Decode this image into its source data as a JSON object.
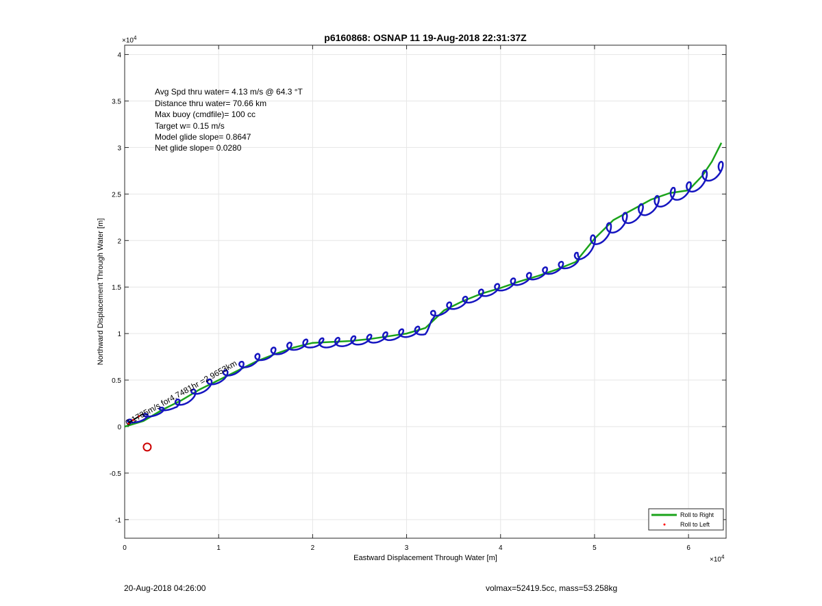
{
  "chart_data": {
    "type": "line",
    "title": "p6160868: OSNAP 11 19-Aug-2018 22:31:37Z",
    "xlabel": "Eastward Displacement Through Water [m]",
    "ylabel": "Northward Displacement Through Water [m]",
    "x_multiplier": "×10",
    "x_multiplier_exp": "4",
    "y_multiplier": "×10",
    "y_multiplier_exp": "4",
    "xlim": [
      0,
      64000
    ],
    "ylim": [
      -12000,
      41000
    ],
    "x_ticks": [
      0,
      10000,
      20000,
      30000,
      40000,
      50000,
      60000
    ],
    "x_tick_labels": [
      "0",
      "1",
      "2",
      "3",
      "4",
      "5",
      "6"
    ],
    "y_ticks": [
      -10000,
      -5000,
      0,
      5000,
      10000,
      15000,
      20000,
      25000,
      30000,
      35000,
      40000
    ],
    "y_tick_labels": [
      "-1",
      "-0.5",
      "0",
      "0.5",
      "1",
      "1.5",
      "2",
      "2.5",
      "3",
      "3.5",
      "4"
    ],
    "grid": true,
    "legend_position": "bottom-right",
    "annotations": [
      "Avg Spd thru water=  4.13 m/s @  64.3 °T",
      "Distance thru water= 70.66 km",
      "Max buoy (cmdfile)= 100 cc",
      "Target w= 0.15 m/s",
      "Model glide slope= 0.8647",
      "Net glide slope= 0.0280"
    ],
    "rotated_label": "0.1735m/s for4.7481hr =2.9653km",
    "series": [
      {
        "name": "Roll to Right",
        "color": "#1aa31a",
        "style": "line",
        "points": [
          [
            0,
            0
          ],
          [
            2000,
            600
          ],
          [
            4000,
            1800
          ],
          [
            6000,
            2800
          ],
          [
            8000,
            4000
          ],
          [
            10000,
            5000
          ],
          [
            12000,
            6000
          ],
          [
            14000,
            7000
          ],
          [
            16000,
            7800
          ],
          [
            18000,
            8500
          ],
          [
            20000,
            9000
          ],
          [
            22000,
            9100
          ],
          [
            24000,
            9200
          ],
          [
            26000,
            9400
          ],
          [
            28000,
            9700
          ],
          [
            30000,
            10000
          ],
          [
            32000,
            10600
          ],
          [
            34000,
            12500
          ],
          [
            36000,
            13500
          ],
          [
            38000,
            14300
          ],
          [
            40000,
            14900
          ],
          [
            42000,
            15600
          ],
          [
            44000,
            16200
          ],
          [
            46000,
            16900
          ],
          [
            48000,
            17700
          ],
          [
            50000,
            20200
          ],
          [
            52000,
            22200
          ],
          [
            54000,
            23300
          ],
          [
            56000,
            24400
          ],
          [
            58000,
            25100
          ],
          [
            60000,
            25400
          ],
          [
            61500,
            27000
          ],
          [
            62500,
            28500
          ],
          [
            63500,
            30500
          ]
        ]
      },
      {
        "name": "Roll to Left",
        "color": "#ff0000",
        "style": "dots",
        "points": [
          [
            400,
            300
          ],
          [
            900,
            700
          ],
          [
            1500,
            1100
          ]
        ]
      },
      {
        "name": "",
        "color": "#1515c0",
        "style": "line",
        "base": [
          [
            0,
            300
          ],
          [
            2000,
            1000
          ],
          [
            4000,
            1800
          ],
          [
            6000,
            2600
          ],
          [
            8000,
            4000
          ],
          [
            10000,
            5200
          ],
          [
            12000,
            6300
          ],
          [
            14000,
            7300
          ],
          [
            16000,
            8100
          ],
          [
            18000,
            8700
          ],
          [
            20000,
            9000
          ],
          [
            22000,
            9000
          ],
          [
            24000,
            9200
          ],
          [
            26000,
            9400
          ],
          [
            28000,
            9700
          ],
          [
            30000,
            10100
          ],
          [
            32000,
            10400
          ],
          [
            32200,
            11600
          ],
          [
            34000,
            12700
          ],
          [
            36000,
            13400
          ],
          [
            38000,
            14300
          ],
          [
            40000,
            15000
          ],
          [
            42000,
            15700
          ],
          [
            44000,
            16400
          ],
          [
            46000,
            17100
          ],
          [
            48000,
            17800
          ],
          [
            49000,
            19000
          ],
          [
            50000,
            20000
          ],
          [
            52000,
            21500
          ],
          [
            54000,
            22700
          ],
          [
            56000,
            23700
          ],
          [
            58000,
            24800
          ],
          [
            60000,
            25500
          ],
          [
            62000,
            27000
          ],
          [
            64000,
            28000
          ]
        ],
        "wiggle_amplitude_y": 500,
        "wiggle_period_x": 1700
      }
    ],
    "marker": {
      "x": 2400,
      "y": -2200,
      "color": "#cc0000",
      "shape": "circle"
    },
    "black_segment": {
      "color": "#000000",
      "points": [
        [
          400,
          400
        ],
        [
          2000,
          1400
        ]
      ]
    }
  },
  "footer": {
    "left": "20-Aug-2018 04:26:00",
    "right": "volmax=52419.5cc, mass=53.258kg"
  }
}
